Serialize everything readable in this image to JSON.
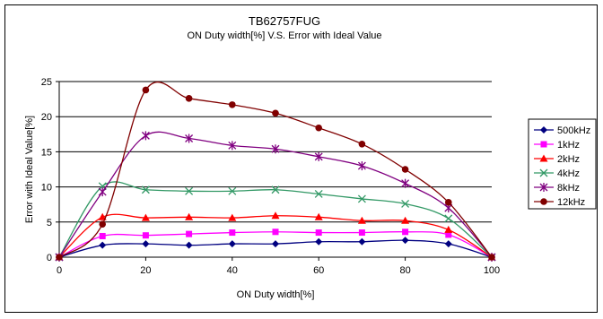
{
  "chart_data": {
    "type": "line",
    "title": "TB62757FUG",
    "subtitle": "ON Duty width[%] V.S. Error with Ideal Value",
    "xlabel": "ON Duty width[%]",
    "ylabel": "Error with Ideal Value[%]",
    "xlim": [
      0,
      100
    ],
    "ylim": [
      0,
      25
    ],
    "xticks": [
      0,
      20,
      40,
      60,
      80,
      100
    ],
    "yticks": [
      0,
      5,
      10,
      15,
      20,
      25
    ],
    "grid": "horizontal",
    "legend_position": "right",
    "x": [
      0,
      10,
      20,
      30,
      40,
      50,
      60,
      70,
      80,
      90,
      100
    ],
    "series": [
      {
        "name": "500kHz",
        "color": "#000080",
        "marker": "diamond",
        "values": [
          0,
          1.7,
          1.9,
          1.7,
          1.9,
          1.9,
          2.2,
          2.2,
          2.4,
          1.9,
          0
        ]
      },
      {
        "name": "1kHz",
        "color": "#ff00ff",
        "marker": "square",
        "values": [
          0,
          3.0,
          3.1,
          3.3,
          3.5,
          3.6,
          3.5,
          3.5,
          3.6,
          3.2,
          0
        ]
      },
      {
        "name": "2kHz",
        "color": "#ff0000",
        "marker": "triangle",
        "values": [
          0,
          5.7,
          5.6,
          5.7,
          5.6,
          5.9,
          5.7,
          5.2,
          5.2,
          3.9,
          0
        ]
      },
      {
        "name": "4kHz",
        "color": "#339966",
        "marker": "x",
        "values": [
          0,
          10.1,
          9.6,
          9.4,
          9.4,
          9.6,
          9.0,
          8.3,
          7.6,
          5.5,
          0
        ]
      },
      {
        "name": "8kHz",
        "color": "#800080",
        "marker": "star",
        "values": [
          0,
          9.3,
          17.3,
          16.9,
          15.9,
          15.4,
          14.3,
          13.0,
          10.5,
          7.0,
          0
        ]
      },
      {
        "name": "12kHz",
        "color": "#800000",
        "marker": "circle",
        "values": [
          0,
          4.7,
          23.8,
          22.6,
          21.7,
          20.5,
          18.4,
          16.1,
          12.5,
          7.8,
          0
        ]
      }
    ]
  }
}
